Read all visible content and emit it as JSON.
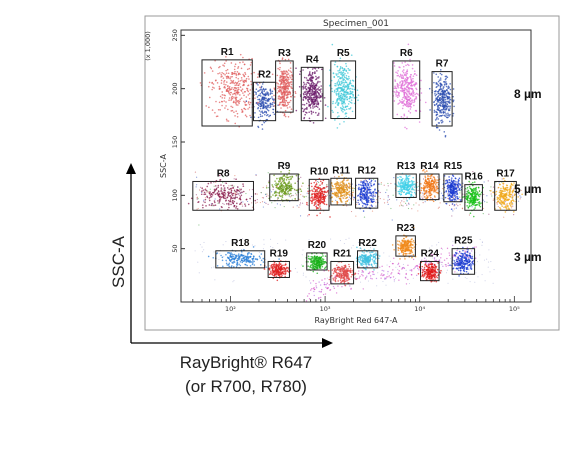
{
  "chart_data": {
    "type": "scatter",
    "title": "Specimen_001",
    "xlabel": "RayBright Red 647-A",
    "ylabel": "SSC-A",
    "x_scale": "log",
    "xlim": [
      30,
      150000
    ],
    "ylim": [
      0,
      255
    ],
    "x_ticks": [
      {
        "value": 100,
        "label": "10²"
      },
      {
        "value": 1000,
        "label": "10³"
      },
      {
        "value": 10000,
        "label": "10⁴"
      },
      {
        "value": 100000,
        "label": "10⁵"
      }
    ],
    "y_ticks": [
      {
        "value": 50,
        "label": "50"
      },
      {
        "value": 100,
        "label": "100"
      },
      {
        "value": 150,
        "label": "150"
      },
      {
        "value": 200,
        "label": "200"
      },
      {
        "value": 250,
        "label": "250"
      }
    ],
    "y_unit_label": "(x 1,000)",
    "regions": [
      {
        "name": "R1",
        "xmin": 50,
        "xmax": 170,
        "ymin": 165,
        "ymax": 227,
        "color": "#e06060",
        "points": [
          108,
          200
        ]
      },
      {
        "name": "R2",
        "xmin": 175,
        "xmax": 300,
        "ymin": 170,
        "ymax": 206,
        "color": "#2e4fb0",
        "points": [
          230,
          187
        ]
      },
      {
        "name": "R3",
        "xmin": 300,
        "xmax": 460,
        "ymin": 178,
        "ymax": 226,
        "color": "#e06060",
        "points": [
          370,
          200
        ]
      },
      {
        "name": "R4",
        "xmin": 560,
        "xmax": 950,
        "ymin": 170,
        "ymax": 220,
        "color": "#6a1a6a",
        "points": [
          730,
          196
        ]
      },
      {
        "name": "R5",
        "xmin": 1150,
        "xmax": 2100,
        "ymin": 172,
        "ymax": 226,
        "color": "#40c8d8",
        "points": [
          1550,
          199
        ]
      },
      {
        "name": "R6",
        "xmin": 5200,
        "xmax": 10000,
        "ymin": 172,
        "ymax": 226,
        "color": "#e070d8",
        "points": [
          7200,
          199
        ]
      },
      {
        "name": "R7",
        "xmin": 13500,
        "xmax": 22000,
        "ymin": 165,
        "ymax": 216,
        "color": "#2e4fb0",
        "points": [
          17500,
          190
        ]
      },
      {
        "name": "R8",
        "xmin": 40,
        "xmax": 175,
        "ymin": 86,
        "ymax": 113,
        "color": "#8a1f4f",
        "points": [
          88,
          99
        ]
      },
      {
        "name": "R9",
        "xmin": 260,
        "xmax": 520,
        "ymin": 95,
        "ymax": 120,
        "color": "#6a9a1a",
        "points": [
          370,
          108
        ]
      },
      {
        "name": "R10",
        "xmin": 680,
        "xmax": 1100,
        "ymin": 86,
        "ymax": 115,
        "color": "#e02020",
        "points": [
          860,
          99
        ]
      },
      {
        "name": "R11",
        "xmin": 1150,
        "xmax": 1900,
        "ymin": 91,
        "ymax": 116,
        "color": "#e0901a",
        "points": [
          1480,
          104
        ]
      },
      {
        "name": "R12",
        "xmin": 2100,
        "xmax": 3600,
        "ymin": 88,
        "ymax": 116,
        "color": "#1a3ad0",
        "points": [
          2750,
          102
        ]
      },
      {
        "name": "R13",
        "xmin": 5600,
        "xmax": 9200,
        "ymin": 98,
        "ymax": 120,
        "color": "#40d0e8",
        "points": [
          7200,
          109
        ]
      },
      {
        "name": "R14",
        "xmin": 10000,
        "xmax": 16000,
        "ymin": 96,
        "ymax": 120,
        "color": "#f07818",
        "points": [
          12600,
          108
        ]
      },
      {
        "name": "R15",
        "xmin": 18000,
        "xmax": 28000,
        "ymin": 94,
        "ymax": 120,
        "color": "#1a3ad0",
        "points": [
          22500,
          106
        ]
      },
      {
        "name": "R16",
        "xmin": 30000,
        "xmax": 46000,
        "ymin": 86,
        "ymax": 110,
        "color": "#18c018",
        "points": [
          37000,
          98
        ]
      },
      {
        "name": "R17",
        "xmin": 62000,
        "xmax": 105000,
        "ymin": 86,
        "ymax": 113,
        "color": "#f0a818",
        "points": [
          80000,
          99
        ]
      },
      {
        "name": "R18",
        "xmin": 70,
        "xmax": 230,
        "ymin": 32,
        "ymax": 48,
        "color": "#2c80d8",
        "points": [
          128,
          40
        ]
      },
      {
        "name": "R19",
        "xmin": 250,
        "xmax": 420,
        "ymin": 23,
        "ymax": 38,
        "color": "#e02020",
        "points": [
          325,
          30
        ]
      },
      {
        "name": "R20",
        "xmin": 640,
        "xmax": 1050,
        "ymin": 30,
        "ymax": 46,
        "color": "#18b018",
        "points": [
          820,
          37
        ]
      },
      {
        "name": "R21",
        "xmin": 1150,
        "xmax": 2000,
        "ymin": 17,
        "ymax": 38,
        "color": "#e04848",
        "points": [
          1520,
          27
        ]
      },
      {
        "name": "R22",
        "xmin": 2200,
        "xmax": 3600,
        "ymin": 32,
        "ymax": 48,
        "color": "#40c0e0",
        "points": [
          2800,
          40
        ]
      },
      {
        "name": "R23",
        "xmin": 5600,
        "xmax": 9000,
        "ymin": 43,
        "ymax": 62,
        "color": "#f08818",
        "points": [
          7100,
          52
        ]
      },
      {
        "name": "R24",
        "xmin": 10200,
        "xmax": 16000,
        "ymin": 20,
        "ymax": 38,
        "color": "#e01818",
        "points": [
          12800,
          28
        ]
      },
      {
        "name": "R25",
        "xmin": 22000,
        "xmax": 38000,
        "ymin": 26,
        "ymax": 50,
        "color": "#1a3ad0",
        "points": [
          29000,
          38
        ]
      }
    ],
    "size_labels": [
      {
        "label": "8 µm",
        "y": 195
      },
      {
        "label": "5 µm",
        "y": 106
      },
      {
        "label": "3 µm",
        "y": 42
      }
    ],
    "outer_axes": {
      "y_label": "SSC-A",
      "x_label_line1": "RayBright® R647",
      "x_label_line2": "(or R700, R780)"
    }
  }
}
